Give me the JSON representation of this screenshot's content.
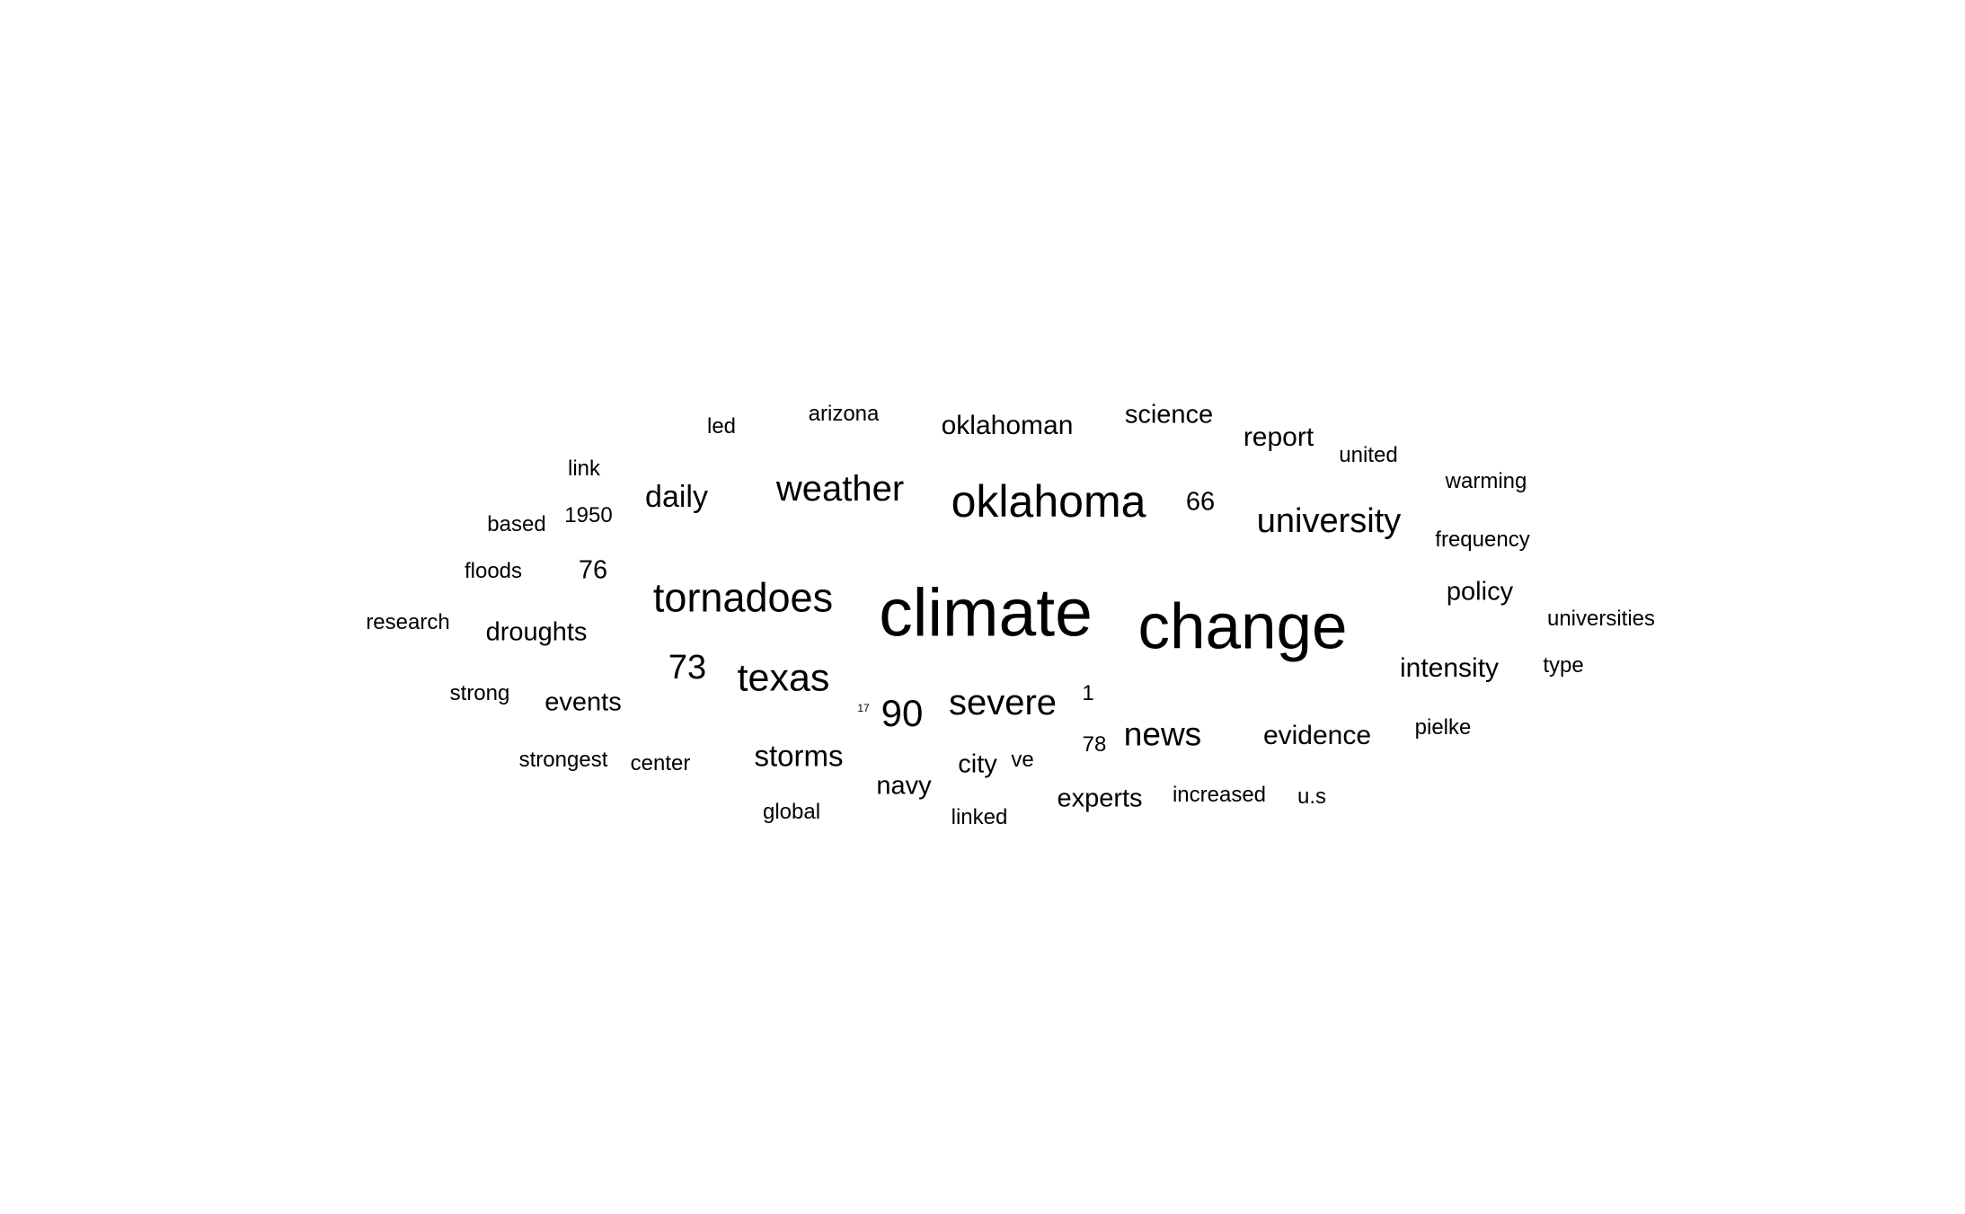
{
  "words": [
    {
      "text": "climate"
    },
    {
      "text": "change"
    },
    {
      "text": "oklahoma"
    },
    {
      "text": "tornadoes"
    },
    {
      "text": "weather"
    },
    {
      "text": "texas"
    },
    {
      "text": "severe"
    },
    {
      "text": "university"
    },
    {
      "text": "news"
    },
    {
      "text": "storms"
    },
    {
      "text": "daily"
    },
    {
      "text": "73"
    },
    {
      "text": "90"
    },
    {
      "text": "droughts"
    },
    {
      "text": "intensity"
    },
    {
      "text": "oklahoman"
    },
    {
      "text": "science"
    },
    {
      "text": "report"
    },
    {
      "text": "evidence"
    },
    {
      "text": "events"
    },
    {
      "text": "navy"
    },
    {
      "text": "experts"
    },
    {
      "text": "policy"
    },
    {
      "text": "66"
    },
    {
      "text": "76"
    },
    {
      "text": "city"
    },
    {
      "text": "arizona"
    },
    {
      "text": "led"
    },
    {
      "text": "link"
    },
    {
      "text": "based"
    },
    {
      "text": "1950"
    },
    {
      "text": "floods"
    },
    {
      "text": "research"
    },
    {
      "text": "strong"
    },
    {
      "text": "strongest"
    },
    {
      "text": "center"
    },
    {
      "text": "global"
    },
    {
      "text": "linked"
    },
    {
      "text": "ve"
    },
    {
      "text": "78"
    },
    {
      "text": "1"
    },
    {
      "text": "17"
    },
    {
      "text": "increased"
    },
    {
      "text": "u.s"
    },
    {
      "text": "pielke"
    },
    {
      "text": "type"
    },
    {
      "text": "universities"
    },
    {
      "text": "frequency"
    },
    {
      "text": "warming"
    },
    {
      "text": "united"
    }
  ]
}
